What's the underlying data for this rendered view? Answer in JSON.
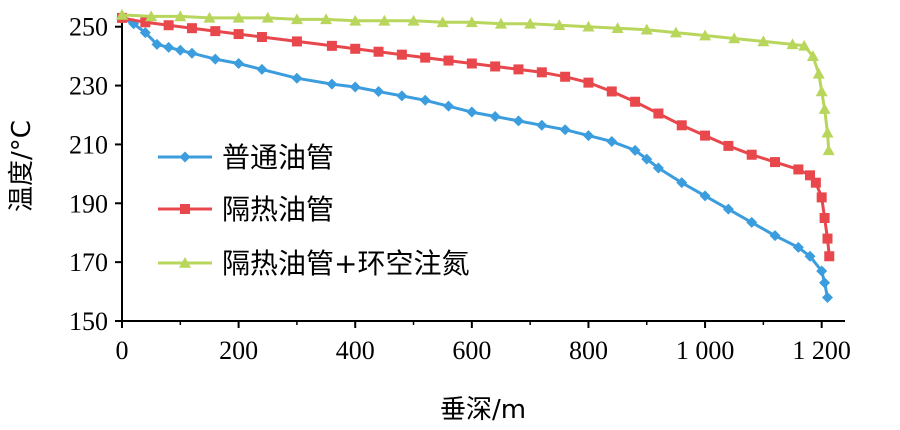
{
  "chart_data": {
    "type": "line",
    "xlabel": "垂深/m",
    "ylabel": "温度/°C",
    "xlim": [
      0,
      1240
    ],
    "ylim": [
      150,
      255
    ],
    "x_ticks": [
      0,
      200,
      400,
      600,
      800,
      1000,
      1200
    ],
    "x_tick_labels": [
      "0",
      "200",
      "400",
      "600",
      "800",
      "1 000",
      "1 200"
    ],
    "y_ticks": [
      150,
      170,
      190,
      210,
      230,
      250
    ],
    "y_tick_labels": [
      "150",
      "170",
      "190",
      "210",
      "230",
      "250"
    ],
    "grid": false,
    "legend_position": "left-middle",
    "series": [
      {
        "name": "普通油管",
        "color": "#3b9ddd",
        "marker": "diamond",
        "x": [
          0,
          20,
          40,
          60,
          80,
          100,
          120,
          160,
          200,
          240,
          300,
          360,
          400,
          440,
          480,
          520,
          560,
          600,
          640,
          680,
          720,
          760,
          800,
          840,
          880,
          900,
          920,
          960,
          1000,
          1040,
          1080,
          1120,
          1160,
          1180,
          1200,
          1205,
          1210
        ],
        "y": [
          253,
          251,
          248,
          244,
          243,
          242,
          241,
          239,
          237.5,
          235.5,
          232.5,
          230.5,
          229.5,
          228,
          226.5,
          225,
          223,
          221,
          219.5,
          218,
          216.5,
          215,
          213,
          211,
          208,
          205,
          202,
          197,
          192.5,
          188,
          183.5,
          179,
          175,
          172,
          167,
          163,
          158
        ]
      },
      {
        "name": "隔热油管",
        "color": "#e8474c",
        "marker": "square",
        "x": [
          0,
          40,
          80,
          120,
          160,
          200,
          240,
          300,
          360,
          400,
          440,
          480,
          520,
          560,
          600,
          640,
          680,
          720,
          760,
          800,
          840,
          880,
          920,
          960,
          1000,
          1040,
          1080,
          1120,
          1160,
          1180,
          1190,
          1200,
          1205,
          1210,
          1213
        ],
        "y": [
          253,
          251.5,
          250.5,
          249.5,
          248.5,
          247.5,
          246.5,
          245,
          243.5,
          242.5,
          241.5,
          240.5,
          239.5,
          238.5,
          237.5,
          236.5,
          235.5,
          234.5,
          233,
          231,
          228,
          224.5,
          220.5,
          216.5,
          213,
          209.5,
          206.5,
          204,
          201.5,
          199.5,
          197,
          192,
          185,
          178,
          172
        ]
      },
      {
        "name": "隔热油管+环空注氮",
        "color": "#b8d65c",
        "marker": "triangle",
        "x": [
          0,
          50,
          100,
          150,
          200,
          250,
          300,
          350,
          400,
          450,
          500,
          550,
          600,
          650,
          700,
          750,
          800,
          850,
          900,
          950,
          1000,
          1050,
          1100,
          1150,
          1170,
          1185,
          1195,
          1200,
          1205,
          1210,
          1212
        ],
        "y": [
          254,
          253.5,
          253.5,
          253,
          253,
          253,
          252.5,
          252.5,
          252,
          252,
          252,
          251.5,
          251.5,
          251,
          251,
          250.5,
          250,
          249.5,
          249,
          248,
          247,
          246,
          245,
          244,
          243.5,
          240,
          234,
          228,
          222,
          214,
          208
        ]
      }
    ]
  }
}
